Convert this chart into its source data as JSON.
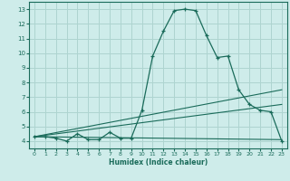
{
  "title": "",
  "xlabel": "Humidex (Indice chaleur)",
  "ylabel": "",
  "bg_color": "#ceecea",
  "grid_color": "#aed4d0",
  "line_color": "#1a6b5a",
  "xlim": [
    -0.5,
    23.5
  ],
  "ylim": [
    3.5,
    13.5
  ],
  "yticks": [
    4,
    5,
    6,
    7,
    8,
    9,
    10,
    11,
    12,
    13
  ],
  "xticks": [
    0,
    1,
    2,
    3,
    4,
    5,
    6,
    7,
    8,
    9,
    10,
    11,
    12,
    13,
    14,
    15,
    16,
    17,
    18,
    19,
    20,
    21,
    22,
    23
  ],
  "main_x": [
    0,
    1,
    2,
    3,
    4,
    5,
    6,
    7,
    8,
    9,
    10,
    11,
    12,
    13,
    14,
    15,
    16,
    17,
    18,
    19,
    20,
    21,
    22,
    23
  ],
  "main_y": [
    4.3,
    4.3,
    4.2,
    4.0,
    4.5,
    4.1,
    4.1,
    4.6,
    4.2,
    4.2,
    6.1,
    9.8,
    11.5,
    12.9,
    13.0,
    12.9,
    11.2,
    9.7,
    9.8,
    7.5,
    6.5,
    6.1,
    6.0,
    4.0
  ],
  "trend1_x": [
    0,
    23
  ],
  "trend1_y": [
    4.3,
    7.5
  ],
  "trend2_x": [
    0,
    23
  ],
  "trend2_y": [
    4.3,
    6.5
  ],
  "trend3_x": [
    0,
    23
  ],
  "trend3_y": [
    4.3,
    4.1
  ]
}
